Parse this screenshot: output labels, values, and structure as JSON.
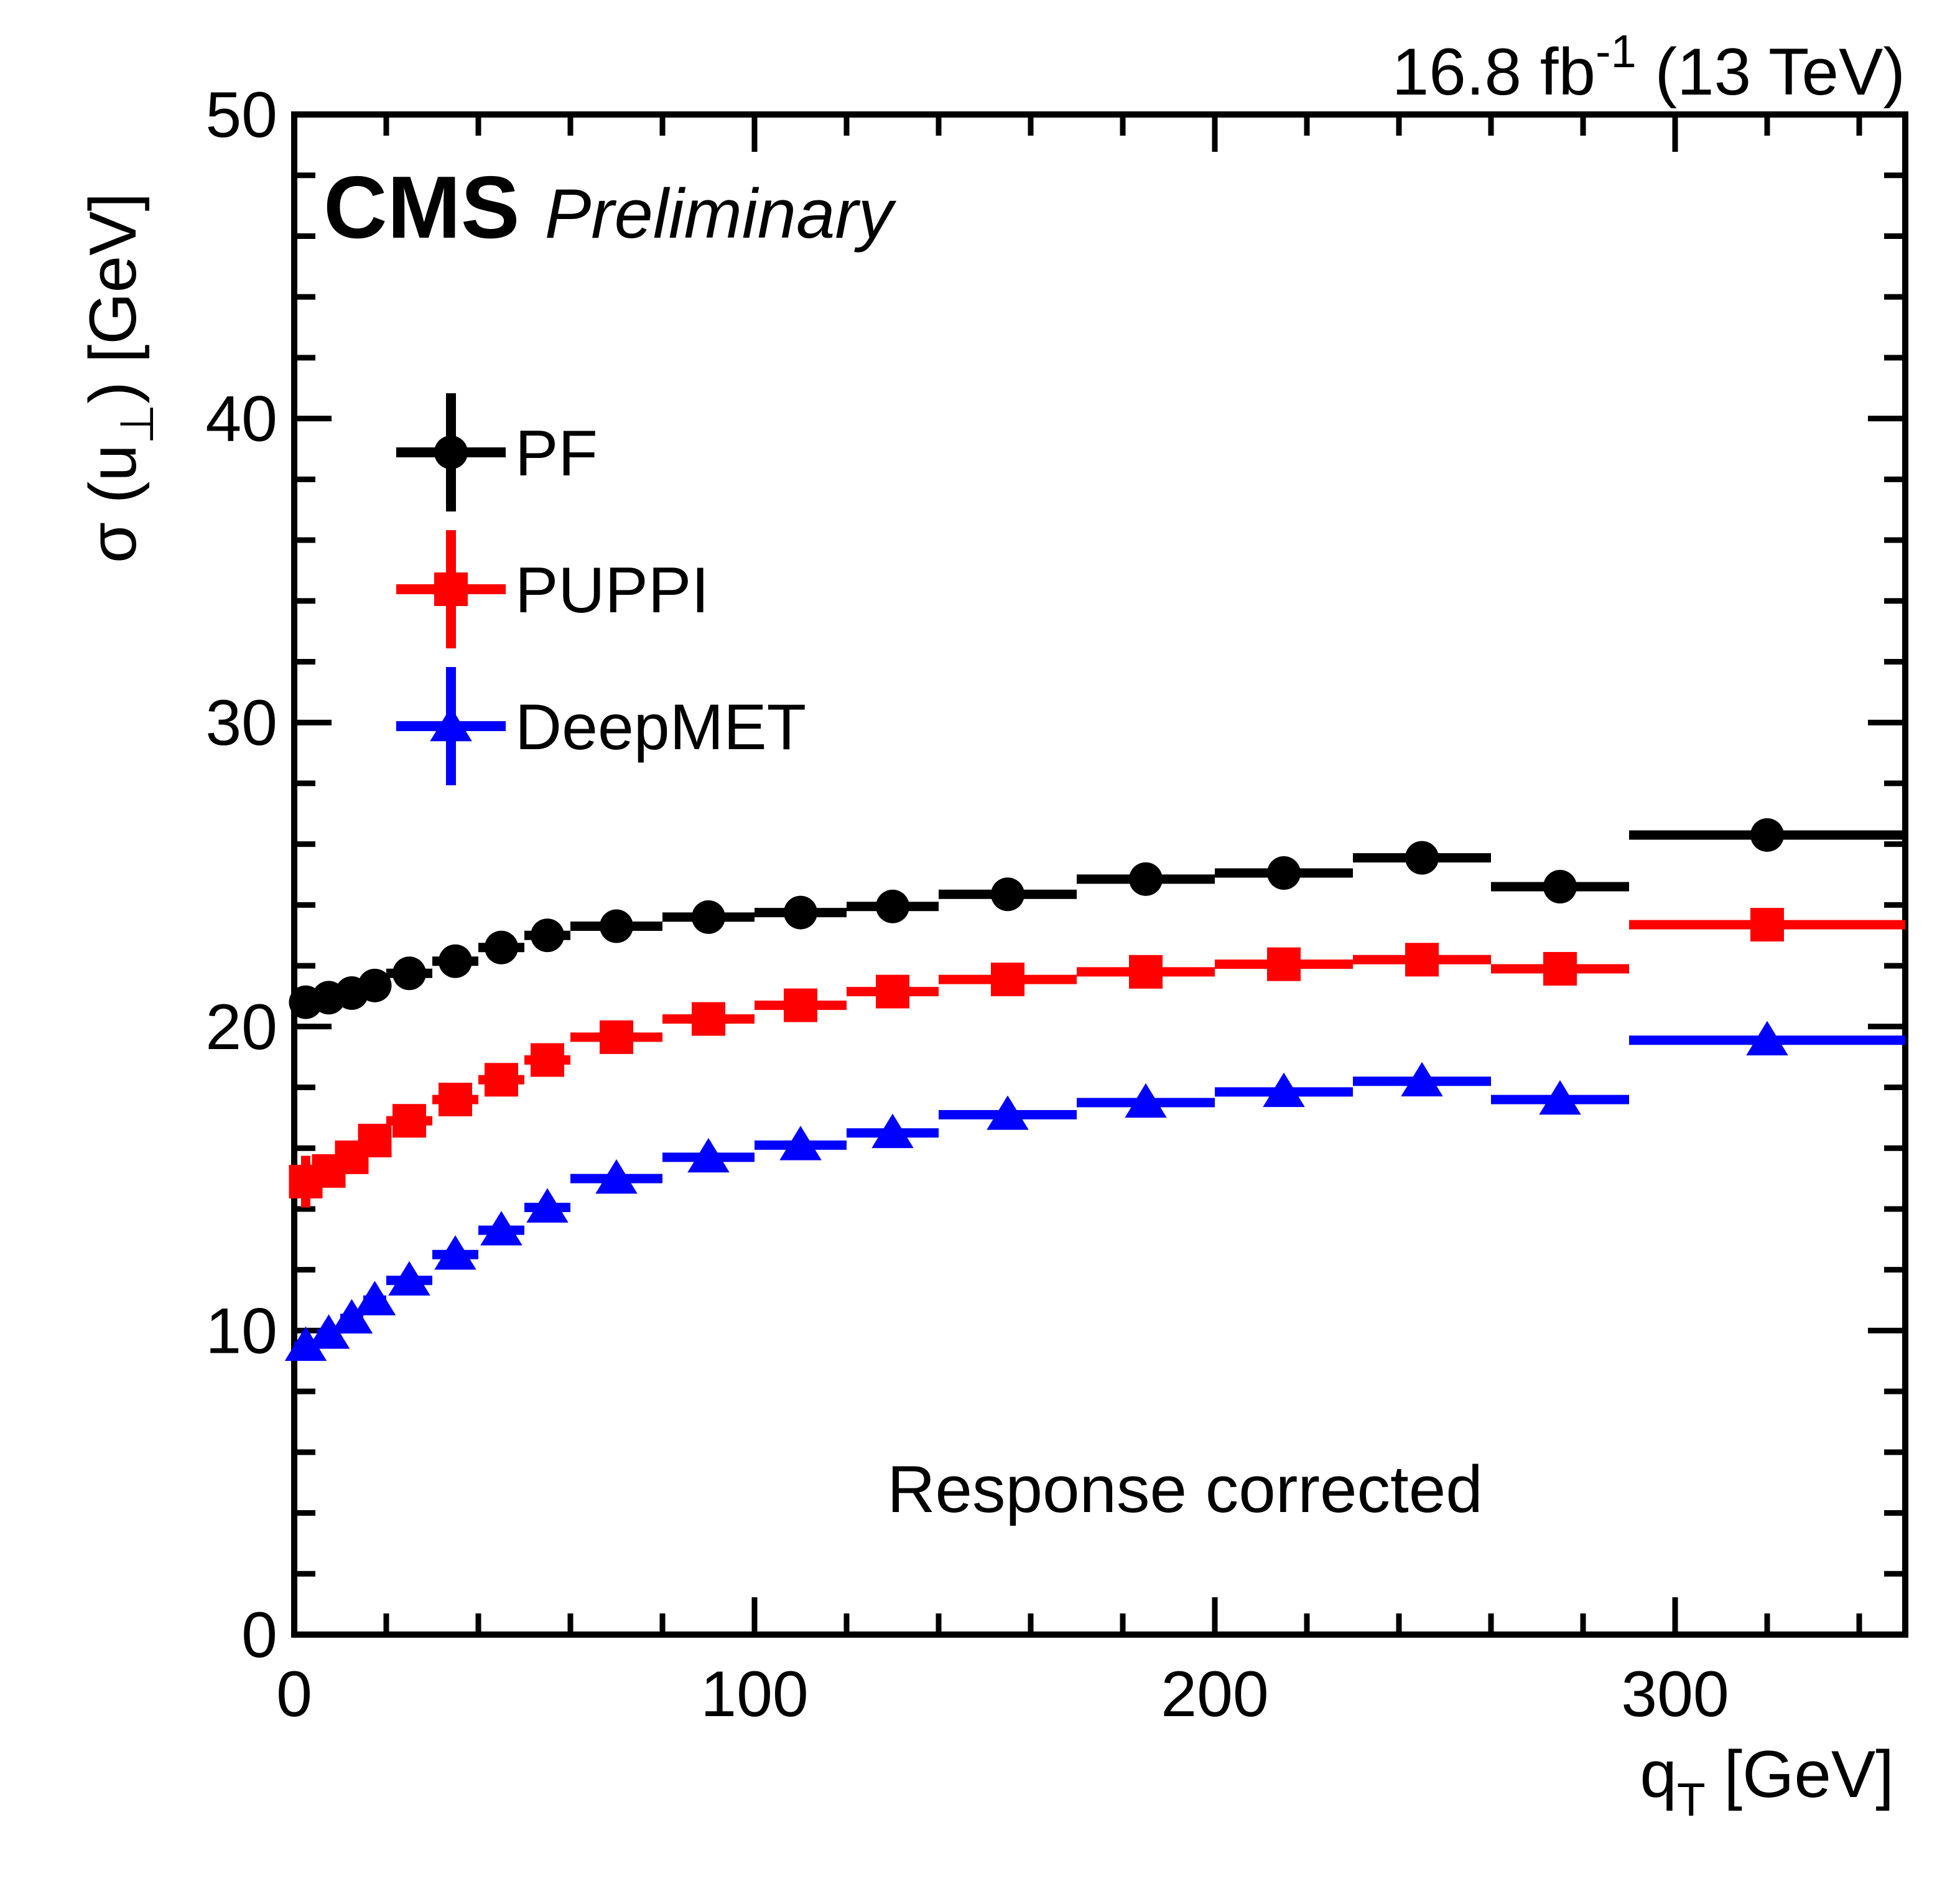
{
  "header": {
    "experiment": "CMS",
    "status": "Preliminary",
    "lumi_main": "16.8 fb",
    "lumi_sup": "-1",
    "lumi_energy": " (13 TeV)"
  },
  "annotation": "Response corrected",
  "y_axis_title": {
    "pre": "σ (u",
    "sub": "⊥",
    "post": ") [GeV]"
  },
  "x_axis_title": {
    "pre": "q",
    "sub": "T",
    "post": " [GeV]"
  },
  "chart_data": {
    "type": "scatter",
    "title": "",
    "xlabel": "q_T [GeV]",
    "ylabel": "sigma(u_perp) [GeV]",
    "xlim": [
      0,
      350
    ],
    "ylim": [
      0,
      50
    ],
    "grid": false,
    "legend_position": "upper-left-inside",
    "x_major_ticks": [
      0,
      100,
      200,
      300
    ],
    "x_minor_step": 20,
    "y_major_ticks": [
      0,
      10,
      20,
      30,
      40,
      50
    ],
    "y_minor_step": 2,
    "x_bin_edges": [
      0,
      5,
      10,
      15,
      20,
      30,
      40,
      50,
      60,
      80,
      100,
      120,
      140,
      170,
      200,
      230,
      260,
      290,
      350
    ],
    "x_bin_centers": [
      2.5,
      7.5,
      12.5,
      17.5,
      25,
      35,
      45,
      55,
      70,
      90,
      110,
      130,
      155,
      185,
      215,
      245,
      275,
      320
    ],
    "series": [
      {
        "name": "PF",
        "color": "#000000",
        "marker": "circle",
        "values": [
          20.8,
          20.95,
          21.1,
          21.35,
          21.75,
          22.15,
          22.6,
          23.0,
          23.3,
          23.6,
          23.75,
          23.95,
          24.35,
          24.85,
          25.05,
          25.55,
          24.6,
          26.3
        ],
        "errors_y": [
          0.3,
          0.25,
          0.2,
          0.2,
          0.15,
          0.15,
          0.15,
          0.15,
          0.15,
          0.15,
          0.15,
          0.15,
          0.15,
          0.15,
          0.15,
          0.2,
          0.2,
          0.25
        ]
      },
      {
        "name": "PUPPI",
        "color": "#ff0000",
        "marker": "square",
        "values": [
          14.9,
          15.25,
          15.7,
          16.25,
          16.9,
          17.6,
          18.25,
          18.9,
          19.65,
          20.25,
          20.7,
          21.15,
          21.55,
          21.8,
          22.05,
          22.2,
          21.9,
          23.35
        ],
        "errors_y": [
          0.85,
          0.5,
          0.35,
          0.3,
          0.2,
          0.15,
          0.15,
          0.15,
          0.15,
          0.15,
          0.15,
          0.15,
          0.15,
          0.15,
          0.15,
          0.2,
          0.2,
          0.25
        ]
      },
      {
        "name": "DeepMET",
        "color": "#0000ff",
        "marker": "triangle",
        "values": [
          9.5,
          9.9,
          10.4,
          11.0,
          11.65,
          12.5,
          13.3,
          14.05,
          15.0,
          15.7,
          16.1,
          16.5,
          17.1,
          17.5,
          17.85,
          18.2,
          17.6,
          19.55
        ],
        "errors_y": [
          0.45,
          0.3,
          0.25,
          0.2,
          0.15,
          0.12,
          0.12,
          0.12,
          0.12,
          0.12,
          0.12,
          0.12,
          0.12,
          0.12,
          0.12,
          0.15,
          0.15,
          0.2
        ]
      }
    ]
  },
  "legend": {
    "items": [
      {
        "label": "PF",
        "color": "#000000",
        "marker": "circle"
      },
      {
        "label": "PUPPI",
        "color": "#ff0000",
        "marker": "square"
      },
      {
        "label": "DeepMET",
        "color": "#0000ff",
        "marker": "triangle"
      }
    ]
  }
}
